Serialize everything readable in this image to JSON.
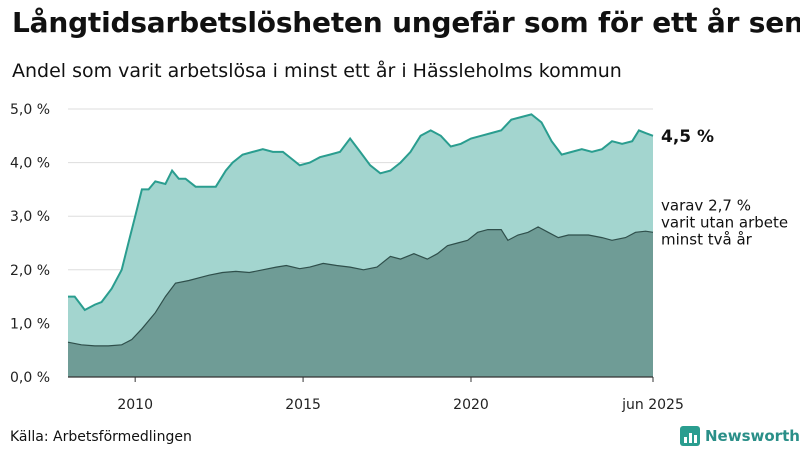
{
  "header": {
    "title": "Långtidsarbetslösheten ungefär som för ett år sen",
    "subtitle": "Andel som varit arbetslösa i minst ett år i Hässleholms kommun"
  },
  "footer": {
    "source": "Källa: Arbetsförmedlingen",
    "brand": "Newsworthy"
  },
  "chart_data": {
    "type": "area",
    "x_start": "2008-01",
    "x_end": "2025-06",
    "x_ticks": [
      {
        "value": 2010,
        "label": "2010"
      },
      {
        "value": 2015,
        "label": "2015"
      },
      {
        "value": 2020,
        "label": "2020"
      },
      {
        "value": 2025.42,
        "label": "jun 2025"
      }
    ],
    "ylim": [
      0,
      5.0
    ],
    "y_ticks": [
      {
        "value": 0,
        "label": "0,0 %"
      },
      {
        "value": 1,
        "label": "1,0 %"
      },
      {
        "value": 2,
        "label": "2,0 %"
      },
      {
        "value": 3,
        "label": "3,0 %"
      },
      {
        "value": 4,
        "label": "4,0 %"
      },
      {
        "value": 5,
        "label": "5,0 %"
      }
    ],
    "grid": true,
    "colors": {
      "total_fill": "#a3d5cf",
      "total_line": "#2a9d8f",
      "long_fill": "#6f9c96",
      "long_line": "#2f4f4b",
      "grid": "#dddddd",
      "axis": "#333333"
    },
    "series": [
      {
        "key": "total",
        "end_label": "4,5 %",
        "points": [
          [
            2008.0,
            1.5
          ],
          [
            2008.2,
            1.5
          ],
          [
            2008.5,
            1.25
          ],
          [
            2008.8,
            1.35
          ],
          [
            2009.0,
            1.4
          ],
          [
            2009.3,
            1.65
          ],
          [
            2009.6,
            2.0
          ],
          [
            2009.8,
            2.5
          ],
          [
            2010.0,
            3.0
          ],
          [
            2010.2,
            3.5
          ],
          [
            2010.4,
            3.5
          ],
          [
            2010.6,
            3.65
          ],
          [
            2010.9,
            3.6
          ],
          [
            2011.1,
            3.85
          ],
          [
            2011.3,
            3.7
          ],
          [
            2011.5,
            3.7
          ],
          [
            2011.8,
            3.55
          ],
          [
            2012.1,
            3.55
          ],
          [
            2012.4,
            3.55
          ],
          [
            2012.7,
            3.85
          ],
          [
            2012.9,
            4.0
          ],
          [
            2013.2,
            4.15
          ],
          [
            2013.5,
            4.2
          ],
          [
            2013.8,
            4.25
          ],
          [
            2014.1,
            4.2
          ],
          [
            2014.4,
            4.2
          ],
          [
            2014.7,
            4.05
          ],
          [
            2014.9,
            3.95
          ],
          [
            2015.2,
            4.0
          ],
          [
            2015.5,
            4.1
          ],
          [
            2015.8,
            4.15
          ],
          [
            2016.1,
            4.2
          ],
          [
            2016.4,
            4.45
          ],
          [
            2016.7,
            4.2
          ],
          [
            2017.0,
            3.95
          ],
          [
            2017.3,
            3.8
          ],
          [
            2017.6,
            3.85
          ],
          [
            2017.9,
            4.0
          ],
          [
            2018.2,
            4.2
          ],
          [
            2018.5,
            4.5
          ],
          [
            2018.8,
            4.6
          ],
          [
            2019.1,
            4.5
          ],
          [
            2019.4,
            4.3
          ],
          [
            2019.7,
            4.35
          ],
          [
            2020.0,
            4.45
          ],
          [
            2020.3,
            4.5
          ],
          [
            2020.6,
            4.55
          ],
          [
            2020.9,
            4.6
          ],
          [
            2021.2,
            4.8
          ],
          [
            2021.5,
            4.85
          ],
          [
            2021.8,
            4.9
          ],
          [
            2022.1,
            4.75
          ],
          [
            2022.4,
            4.4
          ],
          [
            2022.7,
            4.15
          ],
          [
            2023.0,
            4.2
          ],
          [
            2023.3,
            4.25
          ],
          [
            2023.6,
            4.2
          ],
          [
            2023.9,
            4.25
          ],
          [
            2024.2,
            4.4
          ],
          [
            2024.5,
            4.35
          ],
          [
            2024.8,
            4.4
          ],
          [
            2025.0,
            4.6
          ],
          [
            2025.2,
            4.55
          ],
          [
            2025.42,
            4.5
          ]
        ]
      },
      {
        "key": "long",
        "end_label": [
          "varav 2,7 %",
          "varit utan arbete",
          "minst två år"
        ],
        "points": [
          [
            2008.0,
            0.65
          ],
          [
            2008.4,
            0.6
          ],
          [
            2008.8,
            0.58
          ],
          [
            2009.2,
            0.58
          ],
          [
            2009.6,
            0.6
          ],
          [
            2009.9,
            0.7
          ],
          [
            2010.2,
            0.9
          ],
          [
            2010.6,
            1.2
          ],
          [
            2010.9,
            1.5
          ],
          [
            2011.2,
            1.75
          ],
          [
            2011.6,
            1.8
          ],
          [
            2011.9,
            1.85
          ],
          [
            2012.2,
            1.9
          ],
          [
            2012.6,
            1.95
          ],
          [
            2013.0,
            1.97
          ],
          [
            2013.4,
            1.95
          ],
          [
            2013.8,
            2.0
          ],
          [
            2014.2,
            2.05
          ],
          [
            2014.5,
            2.08
          ],
          [
            2014.9,
            2.02
          ],
          [
            2015.2,
            2.05
          ],
          [
            2015.6,
            2.12
          ],
          [
            2016.0,
            2.08
          ],
          [
            2016.4,
            2.05
          ],
          [
            2016.8,
            2.0
          ],
          [
            2017.2,
            2.05
          ],
          [
            2017.6,
            2.25
          ],
          [
            2017.9,
            2.2
          ],
          [
            2018.3,
            2.3
          ],
          [
            2018.7,
            2.2
          ],
          [
            2019.0,
            2.3
          ],
          [
            2019.3,
            2.45
          ],
          [
            2019.6,
            2.5
          ],
          [
            2019.9,
            2.55
          ],
          [
            2020.2,
            2.7
          ],
          [
            2020.5,
            2.75
          ],
          [
            2020.9,
            2.75
          ],
          [
            2021.1,
            2.55
          ],
          [
            2021.4,
            2.65
          ],
          [
            2021.7,
            2.7
          ],
          [
            2022.0,
            2.8
          ],
          [
            2022.3,
            2.7
          ],
          [
            2022.6,
            2.6
          ],
          [
            2022.9,
            2.65
          ],
          [
            2023.2,
            2.65
          ],
          [
            2023.5,
            2.65
          ],
          [
            2023.9,
            2.6
          ],
          [
            2024.2,
            2.55
          ],
          [
            2024.6,
            2.6
          ],
          [
            2024.9,
            2.7
          ],
          [
            2025.2,
            2.72
          ],
          [
            2025.42,
            2.7
          ]
        ]
      }
    ]
  }
}
